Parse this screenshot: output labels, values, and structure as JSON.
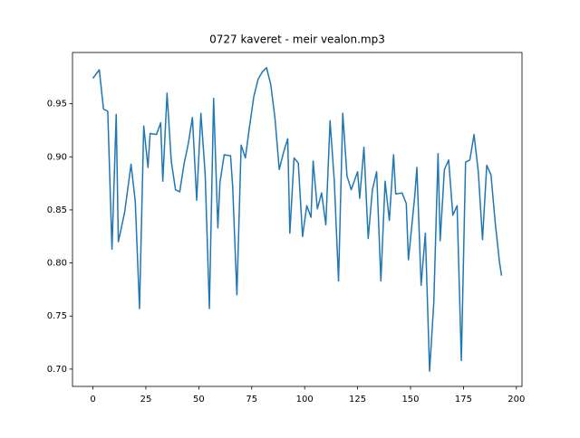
{
  "chart_data": {
    "type": "line",
    "title": "0727 kaveret - meir vealon.mp3",
    "x": [
      0,
      3,
      5,
      7,
      9,
      11,
      12,
      15,
      18,
      20,
      22,
      24,
      26,
      27,
      30,
      32,
      33,
      35,
      37,
      39,
      41,
      43,
      45,
      47,
      49,
      51,
      53,
      55,
      57,
      59,
      60,
      62,
      65,
      66,
      68,
      70,
      72,
      74,
      76,
      78,
      80,
      82,
      84,
      86,
      88,
      90,
      92,
      93,
      95,
      97,
      99,
      101,
      103,
      104,
      106,
      108,
      110,
      112,
      114,
      116,
      118,
      120,
      122,
      125,
      126,
      128,
      130,
      132,
      134,
      136,
      138,
      140,
      142,
      143,
      146,
      148,
      149,
      152,
      153,
      155,
      157,
      159,
      161,
      163,
      164,
      166,
      168,
      170,
      172,
      174,
      176,
      178,
      180,
      182,
      184,
      186,
      188,
      190,
      192,
      193
    ],
    "series": [
      {
        "color": "#1f77b4",
        "values": [
          0.974,
          0.982,
          0.945,
          0.943,
          0.813,
          0.94,
          0.82,
          0.848,
          0.893,
          0.858,
          0.757,
          0.929,
          0.89,
          0.922,
          0.921,
          0.932,
          0.877,
          0.96,
          0.896,
          0.869,
          0.867,
          0.893,
          0.912,
          0.937,
          0.859,
          0.941,
          0.884,
          0.757,
          0.955,
          0.833,
          0.876,
          0.902,
          0.901,
          0.872,
          0.77,
          0.911,
          0.899,
          0.929,
          0.957,
          0.973,
          0.98,
          0.984,
          0.968,
          0.936,
          0.888,
          0.904,
          0.917,
          0.828,
          0.899,
          0.894,
          0.825,
          0.854,
          0.843,
          0.896,
          0.851,
          0.866,
          0.836,
          0.934,
          0.877,
          0.783,
          0.941,
          0.882,
          0.869,
          0.886,
          0.861,
          0.909,
          0.823,
          0.869,
          0.886,
          0.783,
          0.877,
          0.84,
          0.902,
          0.865,
          0.866,
          0.856,
          0.803,
          0.863,
          0.89,
          0.779,
          0.828,
          0.698,
          0.763,
          0.903,
          0.821,
          0.888,
          0.897,
          0.845,
          0.854,
          0.708,
          0.895,
          0.897,
          0.921,
          0.886,
          0.822,
          0.892,
          0.883,
          0.838,
          0.801,
          0.788
        ]
      }
    ],
    "xlim": [
      -9.65,
      202.65
    ],
    "xticks": [
      0,
      25,
      50,
      75,
      100,
      125,
      150,
      175,
      200
    ],
    "ylim": [
      0.6837,
      0.9983
    ],
    "yticks": [
      {
        "value": 0.7,
        "label": "0.70"
      },
      {
        "value": 0.75,
        "label": "0.75"
      },
      {
        "value": 0.8,
        "label": "0.80"
      },
      {
        "value": 0.85,
        "label": "0.85"
      },
      {
        "value": 0.9,
        "label": "0.90"
      },
      {
        "value": 0.95,
        "label": "0.95"
      }
    ]
  }
}
